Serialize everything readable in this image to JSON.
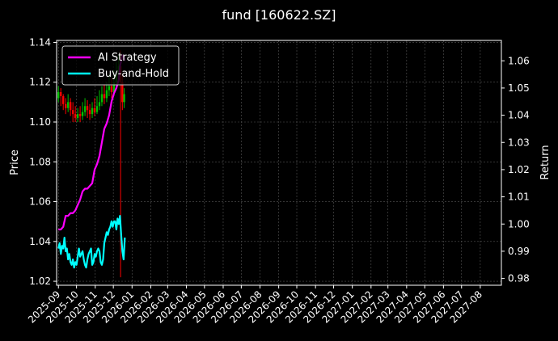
{
  "chart_data": {
    "type": "line",
    "title": "fund [160622.SZ]",
    "xlabel": "",
    "ylabel_left": "Price",
    "ylabel_right": "Return",
    "ylim_left": [
      1.018,
      1.141
    ],
    "ylim_right": [
      0.9775,
      1.0675
    ],
    "xlim": [
      "2025-08-29",
      "2027-09-05"
    ],
    "grid": true,
    "legend_position": "upper-left",
    "colors": {
      "background": "#000000",
      "ai_strategy": "#ff00ff",
      "buy_and_hold": "#00ffff",
      "candle_up": "#00c000",
      "candle_down": "#ff0000",
      "grid": "#555555"
    },
    "x_tick_labels": [
      "2025-09",
      "2025-10",
      "2025-11",
      "2025-12",
      "2026-01",
      "2026-02",
      "2026-03",
      "2026-04",
      "2026-05",
      "2026-06",
      "2026-07",
      "2026-08",
      "2026-09",
      "2026-10",
      "2026-11",
      "2026-12",
      "2027-01",
      "2027-02",
      "2027-03",
      "2027-04",
      "2027-05",
      "2027-06",
      "2027-07",
      "2027-08"
    ],
    "x_tick_dates": [
      "2025-09-01",
      "2025-10-01",
      "2025-11-01",
      "2025-12-01",
      "2026-01-01",
      "2026-02-01",
      "2026-03-01",
      "2026-04-01",
      "2026-05-01",
      "2026-06-01",
      "2026-07-01",
      "2026-08-01",
      "2026-09-01",
      "2026-10-01",
      "2026-11-01",
      "2026-12-01",
      "2027-01-01",
      "2027-02-01",
      "2027-03-01",
      "2027-04-01",
      "2027-05-01",
      "2027-06-01",
      "2027-07-01",
      "2027-08-01"
    ],
    "y_left_ticks": [
      "1.02",
      "1.04",
      "1.06",
      "1.08",
      "1.10",
      "1.12",
      "1.14"
    ],
    "y_right_ticks": [
      "0.98",
      "0.99",
      "1.00",
      "1.01",
      "1.02",
      "1.03",
      "1.04",
      "1.05",
      "1.06"
    ],
    "series": [
      {
        "name": "AI Strategy",
        "axis": "right",
        "x": [
          "2025-09-01",
          "2025-09-05",
          "2025-09-09",
          "2025-09-13",
          "2025-09-17",
          "2025-09-21",
          "2025-09-25",
          "2025-09-29",
          "2025-10-03",
          "2025-10-07",
          "2025-10-11",
          "2025-10-15",
          "2025-10-19",
          "2025-10-23",
          "2025-10-27",
          "2025-10-31",
          "2025-11-04",
          "2025-11-08",
          "2025-11-12",
          "2025-11-16",
          "2025-11-20",
          "2025-11-24",
          "2025-11-28",
          "2025-12-02",
          "2025-12-06",
          "2025-12-10",
          "2025-12-12",
          "2025-12-14",
          "2025-12-16",
          "2025-12-18",
          "2025-12-20"
        ],
        "values": [
          0.998,
          0.998,
          0.999,
          1.003,
          1.003,
          1.004,
          1.004,
          1.005,
          1.007,
          1.009,
          1.012,
          1.013,
          1.013,
          1.014,
          1.015,
          1.02,
          1.022,
          1.025,
          1.03,
          1.035,
          1.037,
          1.04,
          1.045,
          1.048,
          1.05,
          1.053,
          1.058,
          1.06,
          1.062,
          1.062,
          1.06
        ]
      },
      {
        "name": "Buy-and-Hold",
        "axis": "right",
        "x": [
          "2025-09-01",
          "2025-09-03",
          "2025-09-05",
          "2025-09-07",
          "2025-09-09",
          "2025-09-11",
          "2025-09-13",
          "2025-09-15",
          "2025-09-17",
          "2025-09-19",
          "2025-09-21",
          "2025-09-23",
          "2025-09-25",
          "2025-09-27",
          "2025-09-29",
          "2025-10-01",
          "2025-10-03",
          "2025-10-05",
          "2025-10-07",
          "2025-10-09",
          "2025-10-11",
          "2025-10-13",
          "2025-10-15",
          "2025-10-17",
          "2025-10-19",
          "2025-10-21",
          "2025-10-23",
          "2025-10-25",
          "2025-10-27",
          "2025-10-29",
          "2025-10-31",
          "2025-11-02",
          "2025-11-04",
          "2025-11-06",
          "2025-11-08",
          "2025-11-10",
          "2025-11-12",
          "2025-11-14",
          "2025-11-16",
          "2025-11-18",
          "2025-11-20",
          "2025-11-22",
          "2025-11-24",
          "2025-11-26",
          "2025-11-28",
          "2025-11-30",
          "2025-12-02",
          "2025-12-04",
          "2025-12-06",
          "2025-12-08",
          "2025-12-10",
          "2025-12-12",
          "2025-12-14",
          "2025-12-16",
          "2025-12-18",
          "2025-12-20"
        ],
        "values": [
          0.991,
          0.993,
          0.989,
          0.992,
          0.991,
          0.995,
          0.99,
          0.991,
          0.987,
          0.989,
          0.986,
          0.985,
          0.987,
          0.984,
          0.986,
          0.985,
          0.988,
          0.991,
          0.988,
          0.989,
          0.99,
          0.987,
          0.985,
          0.984,
          0.987,
          0.989,
          0.99,
          0.991,
          0.985,
          0.986,
          0.989,
          0.988,
          0.99,
          0.991,
          0.99,
          0.986,
          0.985,
          0.987,
          0.993,
          0.995,
          0.997,
          0.996,
          0.998,
          0.999,
          1.001,
          0.999,
          1.001,
          1.001,
          0.998,
          1.002,
          1.0,
          1.003,
          0.996,
          0.99,
          0.987,
          0.995
        ]
      }
    ],
    "candles": {
      "name": "Price",
      "axis": "left",
      "items": [
        {
          "date": "2025-09-01",
          "open": 1.112,
          "close": 1.115,
          "high": 1.118,
          "low": 1.11
        },
        {
          "date": "2025-09-05",
          "open": 1.115,
          "close": 1.113,
          "high": 1.117,
          "low": 1.108
        },
        {
          "date": "2025-09-09",
          "open": 1.113,
          "close": 1.109,
          "high": 1.114,
          "low": 1.106
        },
        {
          "date": "2025-09-13",
          "open": 1.109,
          "close": 1.107,
          "high": 1.112,
          "low": 1.104
        },
        {
          "date": "2025-09-17",
          "open": 1.107,
          "close": 1.11,
          "high": 1.114,
          "low": 1.105
        },
        {
          "date": "2025-09-21",
          "open": 1.11,
          "close": 1.106,
          "high": 1.112,
          "low": 1.103
        },
        {
          "date": "2025-09-25",
          "open": 1.106,
          "close": 1.104,
          "high": 1.11,
          "low": 1.1
        },
        {
          "date": "2025-09-29",
          "open": 1.104,
          "close": 1.102,
          "high": 1.108,
          "low": 1.1
        },
        {
          "date": "2025-10-03",
          "open": 1.102,
          "close": 1.104,
          "high": 1.107,
          "low": 1.1
        },
        {
          "date": "2025-10-07",
          "open": 1.104,
          "close": 1.103,
          "high": 1.108,
          "low": 1.1
        },
        {
          "date": "2025-10-11",
          "open": 1.103,
          "close": 1.105,
          "high": 1.11,
          "low": 1.101
        },
        {
          "date": "2025-10-15",
          "open": 1.105,
          "close": 1.108,
          "high": 1.112,
          "low": 1.103
        },
        {
          "date": "2025-10-19",
          "open": 1.108,
          "close": 1.106,
          "high": 1.111,
          "low": 1.102
        },
        {
          "date": "2025-10-23",
          "open": 1.106,
          "close": 1.104,
          "high": 1.109,
          "low": 1.101
        },
        {
          "date": "2025-10-27",
          "open": 1.104,
          "close": 1.107,
          "high": 1.11,
          "low": 1.102
        },
        {
          "date": "2025-10-31",
          "open": 1.107,
          "close": 1.105,
          "high": 1.112,
          "low": 1.103
        },
        {
          "date": "2025-11-04",
          "open": 1.105,
          "close": 1.108,
          "high": 1.113,
          "low": 1.104
        },
        {
          "date": "2025-11-08",
          "open": 1.108,
          "close": 1.11,
          "high": 1.116,
          "low": 1.106
        },
        {
          "date": "2025-11-12",
          "open": 1.11,
          "close": 1.114,
          "high": 1.118,
          "low": 1.108
        },
        {
          "date": "2025-11-16",
          "open": 1.114,
          "close": 1.112,
          "high": 1.119,
          "low": 1.109
        },
        {
          "date": "2025-11-20",
          "open": 1.112,
          "close": 1.116,
          "high": 1.12,
          "low": 1.11
        },
        {
          "date": "2025-11-24",
          "open": 1.116,
          "close": 1.118,
          "high": 1.124,
          "low": 1.113
        },
        {
          "date": "2025-11-28",
          "open": 1.118,
          "close": 1.115,
          "high": 1.122,
          "low": 1.112
        },
        {
          "date": "2025-12-02",
          "open": 1.115,
          "close": 1.12,
          "high": 1.126,
          "low": 1.113
        },
        {
          "date": "2025-12-06",
          "open": 1.12,
          "close": 1.124,
          "high": 1.13,
          "low": 1.118
        },
        {
          "date": "2025-12-10",
          "open": 1.124,
          "close": 1.128,
          "high": 1.134,
          "low": 1.121
        },
        {
          "date": "2025-12-13",
          "open": 1.128,
          "close": 1.12,
          "high": 1.136,
          "low": 1.022
        },
        {
          "date": "2025-12-16",
          "open": 1.12,
          "close": 1.11,
          "high": 1.124,
          "low": 1.106
        },
        {
          "date": "2025-12-19",
          "open": 1.11,
          "close": 1.114,
          "high": 1.117,
          "low": 1.107
        }
      ]
    }
  }
}
